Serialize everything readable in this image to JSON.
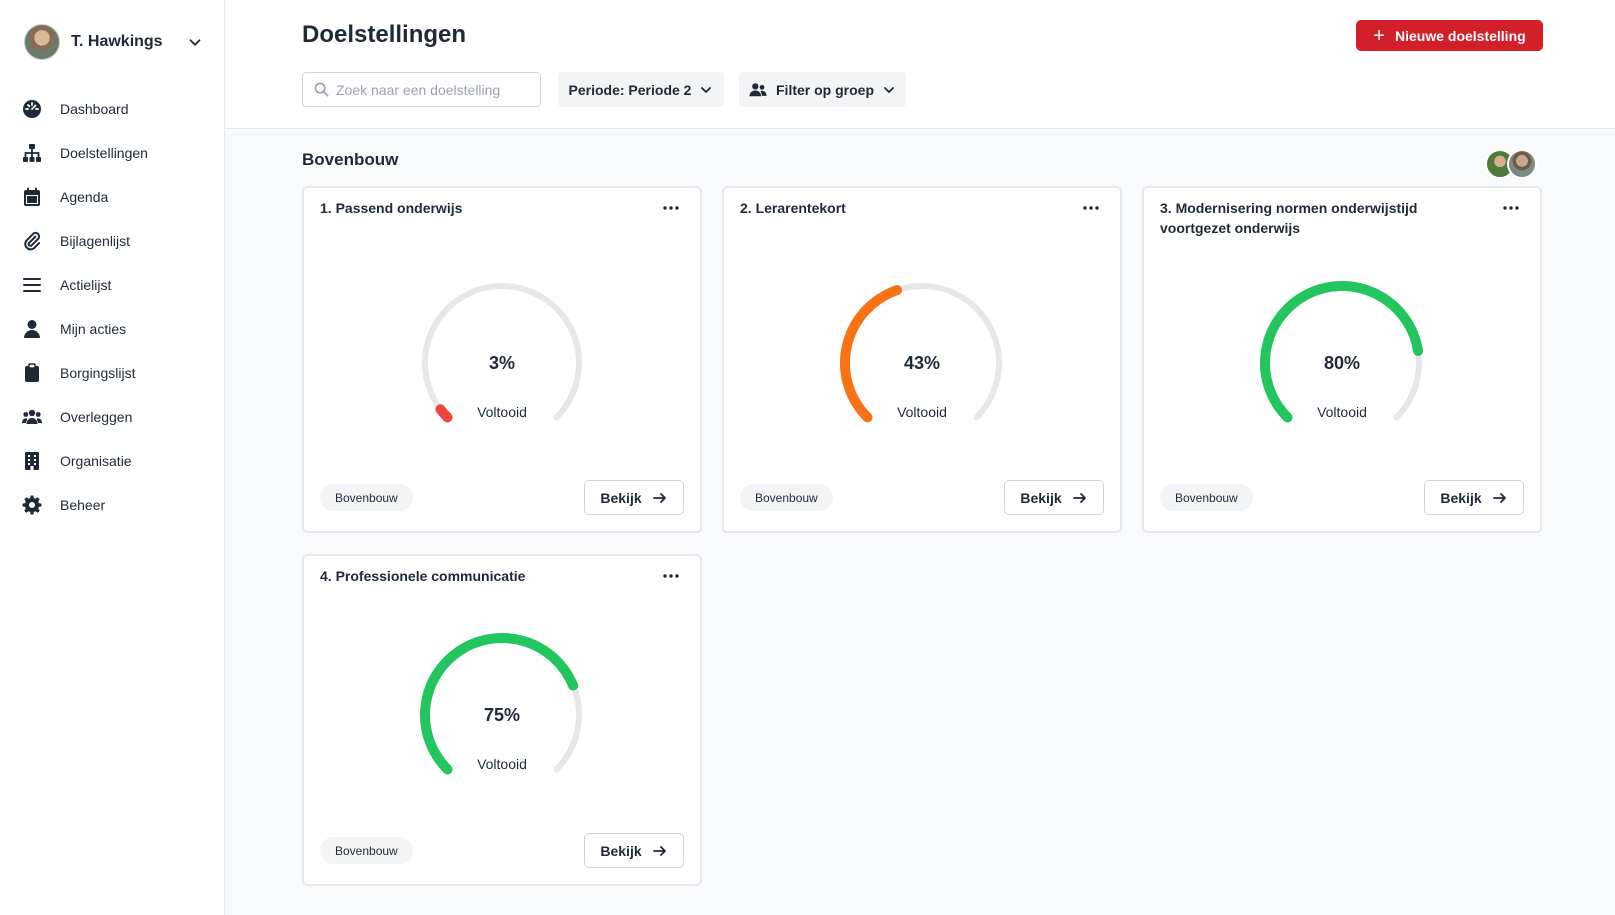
{
  "user": {
    "name": "T. Hawkings"
  },
  "nav": [
    {
      "label": "Dashboard",
      "icon": "dashboard-icon"
    },
    {
      "label": "Doelstellingen",
      "icon": "sitemap-icon"
    },
    {
      "label": "Agenda",
      "icon": "calendar-icon"
    },
    {
      "label": "Bijlagenlijst",
      "icon": "paperclip-icon"
    },
    {
      "label": "Actielijst",
      "icon": "list-icon"
    },
    {
      "label": "Mijn acties",
      "icon": "user-icon"
    },
    {
      "label": "Borgingslijst",
      "icon": "clipboard-icon"
    },
    {
      "label": "Overleggen",
      "icon": "users-icon"
    },
    {
      "label": "Organisatie",
      "icon": "building-icon"
    },
    {
      "label": "Beheer",
      "icon": "gear-icon"
    }
  ],
  "header": {
    "title": "Doelstellingen",
    "new_button": "Nieuwe doelstelling",
    "search_placeholder": "Zoek naar een doelstelling",
    "periode_label": "Periode: Periode 2",
    "group_filter_label": "Filter op groep"
  },
  "section": {
    "title": "Bovenbouw"
  },
  "cards": [
    {
      "title": "1. Passend onderwijs",
      "percent_text": "3%",
      "progress": 0.03,
      "color": "#ef4444",
      "status": "Voltooid",
      "tag": "Bovenbouw",
      "button": "Bekijk"
    },
    {
      "title": "2. Lerarentekort",
      "percent_text": "43%",
      "progress": 0.43,
      "color": "#f97316",
      "status": "Voltooid",
      "tag": "Bovenbouw",
      "button": "Bekijk"
    },
    {
      "title": "3. Modernisering normen onderwijstijd voortgezet onderwijs",
      "percent_text": "80%",
      "progress": 0.8,
      "color": "#22c55e",
      "status": "Voltooid",
      "tag": "Bovenbouw",
      "button": "Bekijk"
    },
    {
      "title": "4. Professionele communicatie",
      "percent_text": "75%",
      "progress": 0.75,
      "color": "#22c55e",
      "status": "Voltooid",
      "tag": "Bovenbouw",
      "button": "Bekijk"
    }
  ],
  "colors": {
    "accent": "#d21f2a",
    "track": "#e5e7eb"
  }
}
